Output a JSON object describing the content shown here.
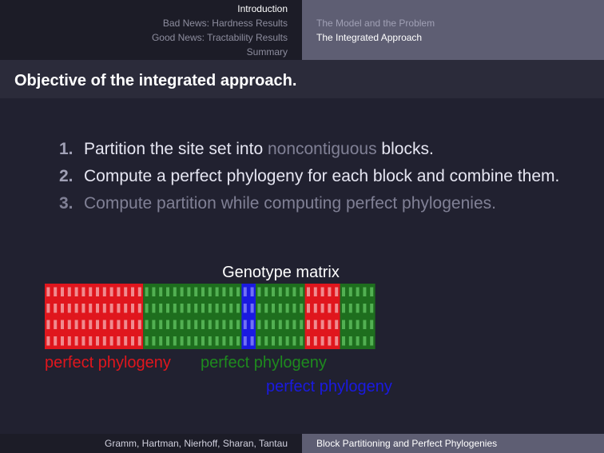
{
  "header": {
    "sections": [
      "Introduction",
      "Bad News: Hardness Results",
      "Good News: Tractability Results",
      "Summary"
    ],
    "active_section": 0,
    "subsections": [
      "The Model and the Problem",
      "The Integrated Approach"
    ],
    "active_subsection": 1
  },
  "frame_title": "Objective of the integrated approach.",
  "list": {
    "item1": {
      "num": "1.",
      "before": "Partition the site set into ",
      "highlight": "noncontiguous",
      "after": " blocks."
    },
    "item2": {
      "num": "2.",
      "text": "Compute a perfect phylogeny for each block and combine them."
    },
    "item3": {
      "num": "3.",
      "text": "Compute partition while computing perfect phylogenies."
    }
  },
  "figure": {
    "title": "Genotype matrix",
    "rows": 4,
    "blocks": [
      {
        "color": "red",
        "columns": 14
      },
      {
        "color": "green",
        "columns": 14
      },
      {
        "color": "blue",
        "columns": 2
      },
      {
        "color": "green",
        "columns": 7
      },
      {
        "color": "red",
        "columns": 5
      },
      {
        "color": "green",
        "columns": 5
      }
    ],
    "colors": {
      "red": {
        "fill": "#e0161d",
        "cell": "#f08a8e",
        "text": "#e0161d"
      },
      "green": {
        "fill": "#1e6e1e",
        "cell": "#52b052",
        "text": "#1e8a1e"
      },
      "blue": {
        "fill": "#1a1ae0",
        "cell": "#7070f5",
        "text": "#1a1ae0"
      }
    },
    "labels": [
      {
        "text": "perfect phylogeny",
        "color": "red"
      },
      {
        "text": "perfect phylogeny",
        "color": "green"
      },
      {
        "text": "perfect phylogeny",
        "color": "blue"
      }
    ]
  },
  "footer": {
    "authors": "Gramm, Hartman, Nierhoff, Sharan, Tantau",
    "short_title": "Block Partitioning and Perfect Phylogenies"
  }
}
